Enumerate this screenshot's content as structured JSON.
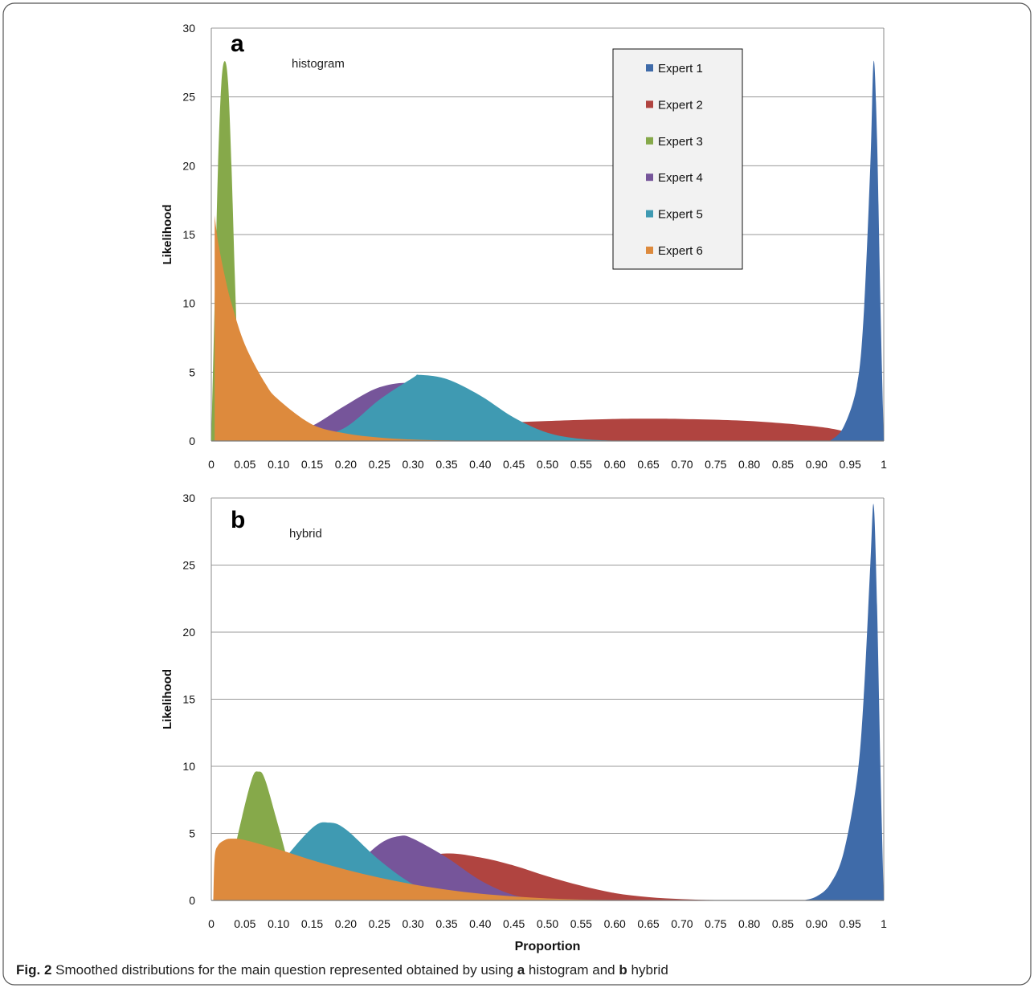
{
  "chart_data": [
    {
      "type": "area",
      "panel_label": "a",
      "annotation": "histogram",
      "xlabel": "",
      "ylabel": "Likelihood",
      "xlim": [
        0,
        1
      ],
      "ylim": [
        0,
        30
      ],
      "x_ticks": [
        "0",
        "0.05",
        "0.10",
        "0.15",
        "0.20",
        "0.25",
        "0.30",
        "0.35",
        "0.40",
        "0.45",
        "0.50",
        "0.55",
        "0.60",
        "0.65",
        "0.70",
        "0.75",
        "0.80",
        "0.85",
        "0.90",
        "0.95",
        "1"
      ],
      "y_ticks": [
        0,
        5,
        10,
        15,
        20,
        25,
        30
      ],
      "grid": "horizontal",
      "legend": "top-right",
      "series": [
        {
          "name": "Expert 2",
          "color": "#b04440",
          "x": [
            0.1,
            0.2,
            0.3,
            0.4,
            0.5,
            0.6,
            0.65,
            0.7,
            0.8,
            0.9,
            0.95,
            0.99
          ],
          "y": [
            0.3,
            0.7,
            1.0,
            1.25,
            1.45,
            1.6,
            1.62,
            1.6,
            1.45,
            1.05,
            0.6,
            0
          ]
        },
        {
          "name": "Expert 4",
          "color": "#76559a",
          "x": [
            0.1,
            0.15,
            0.2,
            0.25,
            0.3,
            0.35,
            0.4,
            0.45,
            0.5
          ],
          "y": [
            0.2,
            1.1,
            2.6,
            3.9,
            4.2,
            3.4,
            2.0,
            0.7,
            0.1
          ]
        },
        {
          "name": "Expert 5",
          "color": "#3f9ab2",
          "x": [
            0.15,
            0.2,
            0.25,
            0.3,
            0.31,
            0.35,
            0.4,
            0.45,
            0.5,
            0.55,
            0.6
          ],
          "y": [
            0.1,
            1.0,
            3.0,
            4.6,
            4.8,
            4.5,
            3.3,
            1.7,
            0.6,
            0.15,
            0.02
          ]
        },
        {
          "name": "Expert 3",
          "color": "#86a94a",
          "x": [
            0.0,
            0.005,
            0.01,
            0.015,
            0.02,
            0.025,
            0.03,
            0.035,
            0.04,
            0.045,
            0.05,
            0.06
          ],
          "y": [
            0,
            10,
            20,
            26,
            27.6,
            26,
            20,
            12,
            5,
            1.5,
            0.3,
            0
          ]
        },
        {
          "name": "Expert 6",
          "color": "#dd8a3d",
          "x": [
            0.005,
            0.01,
            0.02,
            0.03,
            0.05,
            0.08,
            0.1,
            0.15,
            0.2,
            0.25,
            0.3,
            0.35,
            0.4
          ],
          "y": [
            16.4,
            14.5,
            12.0,
            10.0,
            7.0,
            4.2,
            3.0,
            1.2,
            0.55,
            0.25,
            0.1,
            0.04,
            0
          ]
        },
        {
          "name": "Expert 1",
          "color": "#3f6ba9",
          "x": [
            0.92,
            0.94,
            0.96,
            0.97,
            0.98,
            0.985,
            0.99,
            0.995,
            1.0
          ],
          "y": [
            0,
            1,
            4,
            9,
            20,
            27.6,
            22,
            10,
            0
          ]
        }
      ],
      "legend_order": [
        "Expert 1",
        "Expert 2",
        "Expert 3",
        "Expert 4",
        "Expert 5",
        "Expert 6"
      ]
    },
    {
      "type": "area",
      "panel_label": "b",
      "annotation": "hybrid",
      "xlabel": "Proportion",
      "ylabel": "Likelihood",
      "xlim": [
        0,
        1
      ],
      "ylim": [
        0,
        30
      ],
      "x_ticks": [
        "0",
        "0.05",
        "0.10",
        "0.15",
        "0.20",
        "0.25",
        "0.30",
        "0.35",
        "0.40",
        "0.45",
        "0.50",
        "0.55",
        "0.60",
        "0.65",
        "0.70",
        "0.75",
        "0.80",
        "0.85",
        "0.90",
        "0.95",
        "1"
      ],
      "y_ticks": [
        0,
        5,
        10,
        15,
        20,
        25,
        30
      ],
      "grid": "horizontal",
      "series": [
        {
          "name": "Expert 2",
          "color": "#b04440",
          "x": [
            0.1,
            0.2,
            0.3,
            0.35,
            0.4,
            0.45,
            0.5,
            0.55,
            0.6,
            0.65,
            0.7,
            0.75,
            0.8
          ],
          "y": [
            0.3,
            1.5,
            3.0,
            3.5,
            3.2,
            2.6,
            1.8,
            1.1,
            0.55,
            0.25,
            0.1,
            0.03,
            0
          ]
        },
        {
          "name": "Expert 4",
          "color": "#76559a",
          "x": [
            0.15,
            0.2,
            0.25,
            0.28,
            0.3,
            0.35,
            0.4,
            0.45,
            0.5
          ],
          "y": [
            0.3,
            2.0,
            4.2,
            4.8,
            4.6,
            3.2,
            1.5,
            0.4,
            0.05
          ]
        },
        {
          "name": "Expert 5",
          "color": "#3f9ab2",
          "x": [
            0.08,
            0.1,
            0.15,
            0.175,
            0.2,
            0.25,
            0.3,
            0.35
          ],
          "y": [
            0.5,
            2.5,
            5.4,
            5.8,
            5.3,
            3.0,
            1.2,
            0.2
          ]
        },
        {
          "name": "Expert 3",
          "color": "#86a94a",
          "x": [
            0.02,
            0.04,
            0.06,
            0.07,
            0.08,
            0.1,
            0.12,
            0.14
          ],
          "y": [
            0.3,
            5.0,
            9.0,
            9.6,
            9.0,
            5.5,
            2.0,
            0.4
          ]
        },
        {
          "name": "Expert 6",
          "color": "#dd8a3d",
          "x": [
            0.003,
            0.005,
            0.01,
            0.02,
            0.03,
            0.05,
            0.1,
            0.15,
            0.2,
            0.25,
            0.3,
            0.35,
            0.4,
            0.45,
            0.5,
            0.55,
            0.6,
            0.65
          ],
          "y": [
            0,
            3.2,
            4.1,
            4.5,
            4.6,
            4.5,
            3.8,
            3.0,
            2.3,
            1.7,
            1.2,
            0.8,
            0.5,
            0.3,
            0.15,
            0.07,
            0.03,
            0
          ]
        },
        {
          "name": "Expert 1",
          "color": "#3f6ba9",
          "x": [
            0.88,
            0.9,
            0.92,
            0.94,
            0.96,
            0.97,
            0.98,
            0.985,
            0.99,
            0.995,
            1.0
          ],
          "y": [
            0,
            0.3,
            1.2,
            3.5,
            9,
            15,
            25,
            29.5,
            22,
            10,
            0
          ]
        }
      ]
    }
  ],
  "caption": {
    "fig_label": "Fig. 2",
    "text_1": " Smoothed distributions for the main question represented obtained by using ",
    "bold_a": "a",
    "text_2": " histogram and ",
    "bold_b": "b",
    "text_3": " hybrid"
  }
}
